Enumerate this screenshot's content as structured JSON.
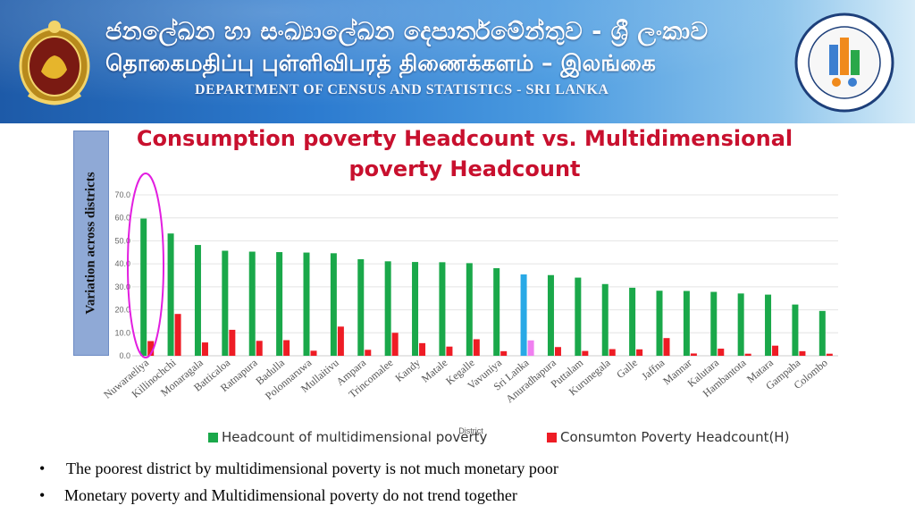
{
  "header": {
    "sinhala_title": "ජනලේඛන හා සංඛ්‍යාලේඛන දෙපාර්තමේන්තුව - ශ්‍රී ලංකාව",
    "tamil_title": "தொகைமதிப்பு புள்ளிவிபரத் திணைக்களம் – இலங்கை",
    "english_title": "DEPARTMENT OF CENSUS AND STATISTICS - SRI LANKA"
  },
  "side_label": "Variation across districts",
  "chart_data": {
    "type": "bar",
    "title": "Consumption poverty Headcount  vs. Multidimensional poverty Headcount",
    "xlabel": "District",
    "ylabel": "",
    "ylim": [
      0,
      70
    ],
    "yticks": [
      "0.0",
      "10.0",
      "20.0",
      "30.0",
      "40.0",
      "50.0",
      "60.0",
      "70.0"
    ],
    "grid": true,
    "legend_position": "bottom",
    "categories": [
      "Nuwaraeliya",
      "Killinochchi",
      "Monaragala",
      "Batticaloa",
      "Ratnapura",
      "Badulla",
      "Polonnaruwa",
      "Mullaitivu",
      "Ampara",
      "Trincomalee",
      "Kandy",
      "Matale",
      "Kegalle",
      "Vavuniya",
      "Sri Lanka",
      "Anuradhapura",
      "Puttalam",
      "Kurunegala",
      "Galle",
      "Jaffna",
      "Mannar",
      "Kalutara",
      "Hambantota",
      "Matara",
      "Gampaha",
      "Colombo"
    ],
    "highlight_category": "Sri Lanka",
    "series": [
      {
        "name": "Headcount of multidimensional poverty",
        "color": "#1aa84a",
        "highlight_color": "#29a9e6",
        "values": [
          59.7,
          53.2,
          48.2,
          45.7,
          45.3,
          45.1,
          44.9,
          44.6,
          42.0,
          41.1,
          40.8,
          40.7,
          40.3,
          38.1,
          35.4,
          35.1,
          34.0,
          31.2,
          29.6,
          28.3,
          28.2,
          27.8,
          27.1,
          26.6,
          22.3,
          19.5
        ]
      },
      {
        "name": "Consumton Poverty Headcount(H)",
        "color": "#ee1c25",
        "highlight_color": "#f07ff0",
        "values": [
          6.4,
          18.2,
          5.8,
          11.3,
          6.5,
          6.8,
          2.2,
          12.7,
          2.6,
          10.0,
          5.5,
          4.0,
          7.2,
          2.0,
          6.7,
          3.8,
          2.1,
          2.9,
          2.8,
          7.7,
          1.0,
          3.1,
          0.9,
          4.4,
          2.0,
          0.9
        ]
      }
    ]
  },
  "bullets": [
    "The poorest district by multidimensional poverty is not much monetary poor",
    "Monetary poverty and Multidimensional poverty do not trend together"
  ]
}
